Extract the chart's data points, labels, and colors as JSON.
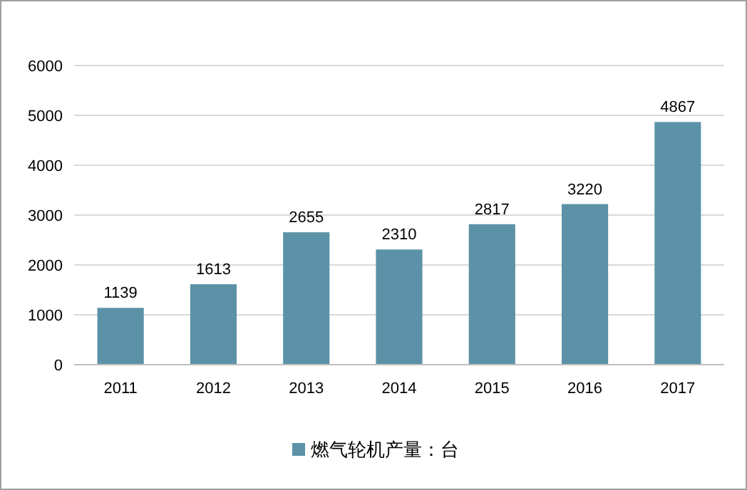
{
  "chart_data": {
    "type": "bar",
    "categories": [
      "2011",
      "2012",
      "2013",
      "2014",
      "2015",
      "2016",
      "2017"
    ],
    "series": [
      {
        "name": "燃气轮机产量：台",
        "color": "#5b92a7",
        "values": [
          1139,
          1613,
          2655,
          2310,
          2817,
          3220,
          4867
        ]
      }
    ],
    "ylim": [
      0,
      6000
    ],
    "yticks": [
      0,
      1000,
      2000,
      3000,
      4000,
      5000,
      6000
    ],
    "grid": "y",
    "legend": "bottom",
    "data_labels": true
  }
}
